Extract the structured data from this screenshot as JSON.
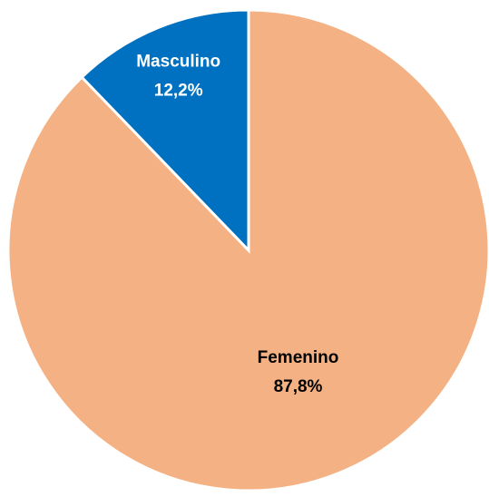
{
  "chart_data": {
    "type": "pie",
    "categories": [
      "Femenino",
      "Masculino"
    ],
    "values": [
      87.8,
      12.2
    ],
    "value_labels": [
      "87,8%",
      "12,2%"
    ],
    "colors": [
      "#F4B183",
      "#0070C0"
    ],
    "label_colors": [
      "#000000",
      "#FFFFFF"
    ]
  }
}
